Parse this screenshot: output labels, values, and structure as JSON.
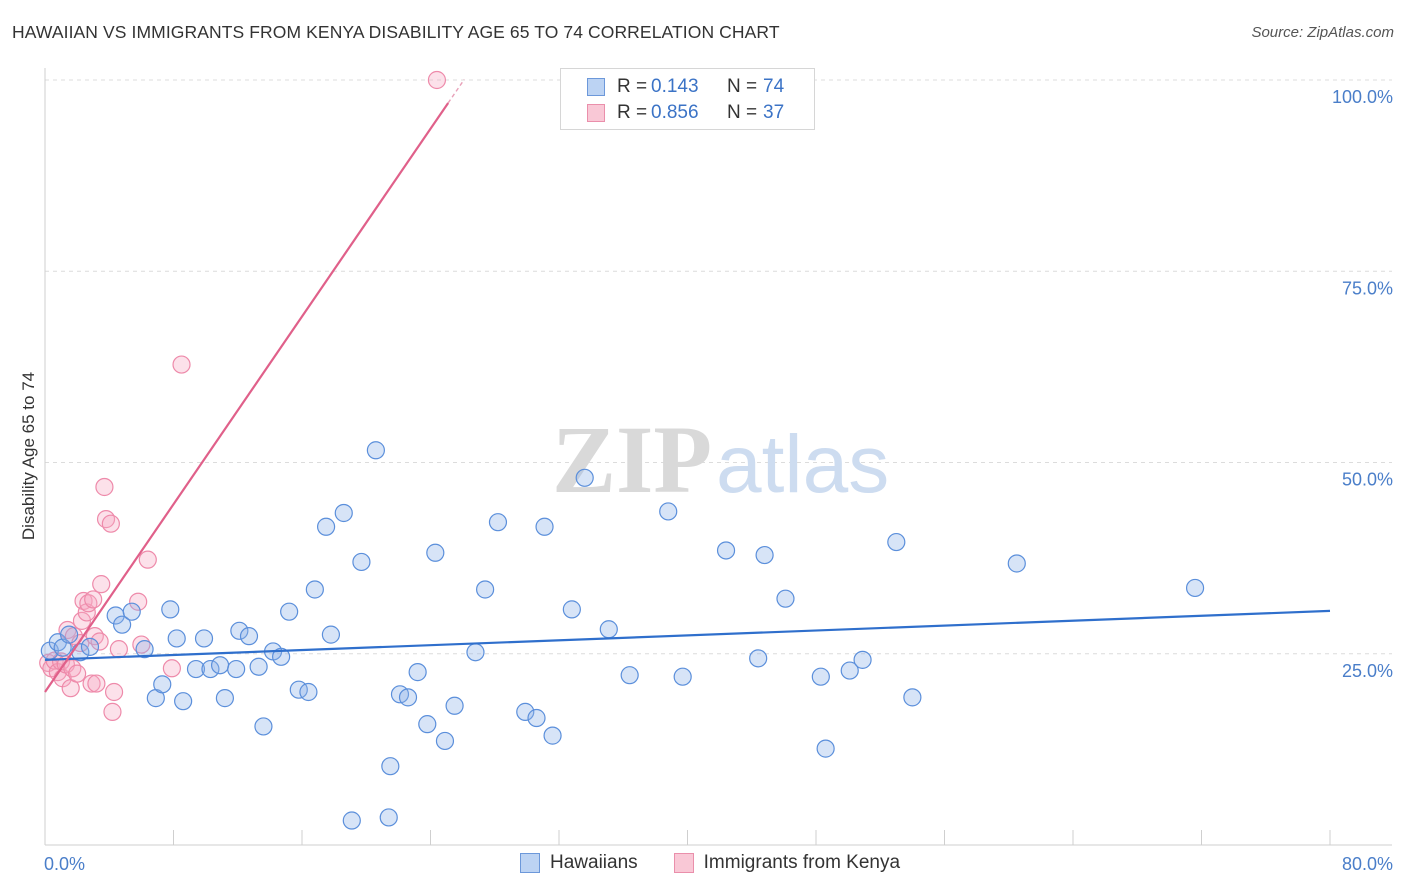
{
  "header": {
    "title": "HAWAIIAN VS IMMIGRANTS FROM KENYA DISABILITY AGE 65 TO 74 CORRELATION CHART",
    "source": "Source: ZipAtlas.com"
  },
  "watermark": {
    "part1": "ZIP",
    "part2": "atlas"
  },
  "legend": {
    "rows": [
      {
        "r_label": "R =",
        "r_value": "0.143",
        "n_label": "N =",
        "n_value": "74"
      },
      {
        "r_label": "R =",
        "r_value": "0.856",
        "n_label": "N =",
        "n_value": "37"
      }
    ]
  },
  "chart_data": {
    "type": "scatter",
    "title": "HAWAIIAN VS IMMIGRANTS FROM KENYA DISABILITY AGE 65 TO 74 CORRELATION CHART",
    "xlabel": "",
    "ylabel": "Disability Age 65 to 74",
    "xlim": [
      0,
      80
    ],
    "ylim": [
      0,
      100
    ],
    "x_tick_labels": [
      "0.0%",
      "80.0%"
    ],
    "y_tick_labels": [
      "100.0%",
      "75.0%",
      "50.0%",
      "25.0%"
    ],
    "y_tick_values": [
      100,
      75,
      50,
      25
    ],
    "grid": true,
    "legend_position": "top-center",
    "colors": {
      "hawaiians": "#5b8fdb",
      "kenya": "#ee8aaa",
      "hawaiians_line": "#2f6fcc",
      "kenya_line": "#e0608a"
    },
    "series": [
      {
        "name": "Hawaiians",
        "trend": {
          "x": [
            0,
            80
          ],
          "y": [
            24.2,
            30.6
          ]
        },
        "points": [
          [
            0.3,
            25.4
          ],
          [
            0.8,
            26.5
          ],
          [
            1.1,
            25.8
          ],
          [
            1.5,
            27.5
          ],
          [
            2.2,
            25.2
          ],
          [
            2.8,
            25.9
          ],
          [
            4.4,
            30.0
          ],
          [
            4.8,
            28.8
          ],
          [
            5.4,
            30.5
          ],
          [
            6.2,
            25.6
          ],
          [
            6.9,
            19.2
          ],
          [
            7.3,
            21.0
          ],
          [
            7.8,
            30.8
          ],
          [
            8.2,
            27.0
          ],
          [
            8.6,
            18.8
          ],
          [
            9.4,
            23.0
          ],
          [
            9.9,
            27.0
          ],
          [
            10.3,
            23.0
          ],
          [
            10.9,
            23.5
          ],
          [
            11.2,
            19.2
          ],
          [
            11.9,
            23.0
          ],
          [
            12.1,
            28.0
          ],
          [
            12.7,
            27.3
          ],
          [
            13.3,
            23.3
          ],
          [
            13.6,
            15.5
          ],
          [
            14.2,
            25.3
          ],
          [
            14.7,
            24.6
          ],
          [
            15.2,
            30.5
          ],
          [
            15.8,
            20.3
          ],
          [
            16.4,
            20.0
          ],
          [
            16.8,
            33.4
          ],
          [
            17.5,
            41.6
          ],
          [
            17.8,
            27.5
          ],
          [
            18.6,
            43.4
          ],
          [
            19.1,
            3.2
          ],
          [
            19.7,
            37.0
          ],
          [
            20.6,
            51.6
          ],
          [
            21.4,
            3.6
          ],
          [
            21.5,
            10.3
          ],
          [
            22.1,
            19.7
          ],
          [
            22.6,
            19.3
          ],
          [
            23.2,
            22.6
          ],
          [
            23.8,
            15.8
          ],
          [
            24.3,
            38.2
          ],
          [
            24.9,
            13.6
          ],
          [
            25.5,
            18.2
          ],
          [
            26.8,
            25.2
          ],
          [
            27.4,
            33.4
          ],
          [
            28.2,
            42.2
          ],
          [
            29.9,
            17.4
          ],
          [
            30.6,
            16.6
          ],
          [
            31.1,
            41.6
          ],
          [
            31.6,
            14.3
          ],
          [
            32.8,
            30.8
          ],
          [
            33.6,
            48.0
          ],
          [
            35.1,
            28.2
          ],
          [
            36.4,
            22.2
          ],
          [
            38.8,
            43.6
          ],
          [
            39.7,
            22.0
          ],
          [
            42.4,
            38.5
          ],
          [
            44.4,
            24.4
          ],
          [
            44.8,
            37.9
          ],
          [
            46.1,
            32.2
          ],
          [
            48.3,
            22.0
          ],
          [
            48.6,
            12.6
          ],
          [
            50.1,
            22.8
          ],
          [
            50.9,
            24.2
          ],
          [
            53.0,
            39.6
          ],
          [
            54.0,
            19.3
          ],
          [
            60.5,
            36.8
          ],
          [
            71.6,
            33.6
          ]
        ]
      },
      {
        "name": "Immigrants from Kenya",
        "trend": {
          "x": [
            0,
            25.1
          ],
          "y": [
            20.0,
            97.0
          ]
        },
        "points": [
          [
            0.2,
            23.8
          ],
          [
            0.4,
            23.1
          ],
          [
            0.6,
            24.1
          ],
          [
            0.8,
            22.6
          ],
          [
            1.0,
            24.0
          ],
          [
            1.1,
            21.8
          ],
          [
            1.3,
            23.6
          ],
          [
            1.4,
            28.1
          ],
          [
            1.6,
            20.5
          ],
          [
            1.7,
            23.1
          ],
          [
            1.8,
            27.3
          ],
          [
            2.0,
            22.4
          ],
          [
            2.2,
            26.4
          ],
          [
            2.3,
            29.3
          ],
          [
            2.4,
            31.9
          ],
          [
            2.6,
            30.4
          ],
          [
            2.7,
            31.6
          ],
          [
            2.9,
            21.1
          ],
          [
            3.0,
            32.1
          ],
          [
            3.1,
            27.3
          ],
          [
            3.2,
            21.1
          ],
          [
            3.4,
            26.6
          ],
          [
            3.5,
            34.1
          ],
          [
            3.7,
            46.8
          ],
          [
            3.8,
            42.6
          ],
          [
            4.1,
            42.0
          ],
          [
            4.2,
            17.4
          ],
          [
            4.3,
            20.0
          ],
          [
            4.6,
            25.6
          ],
          [
            5.8,
            31.8
          ],
          [
            6.0,
            26.2
          ],
          [
            6.4,
            37.3
          ],
          [
            7.9,
            23.1
          ],
          [
            8.5,
            62.8
          ],
          [
            24.4,
            100.0
          ]
        ]
      }
    ]
  }
}
